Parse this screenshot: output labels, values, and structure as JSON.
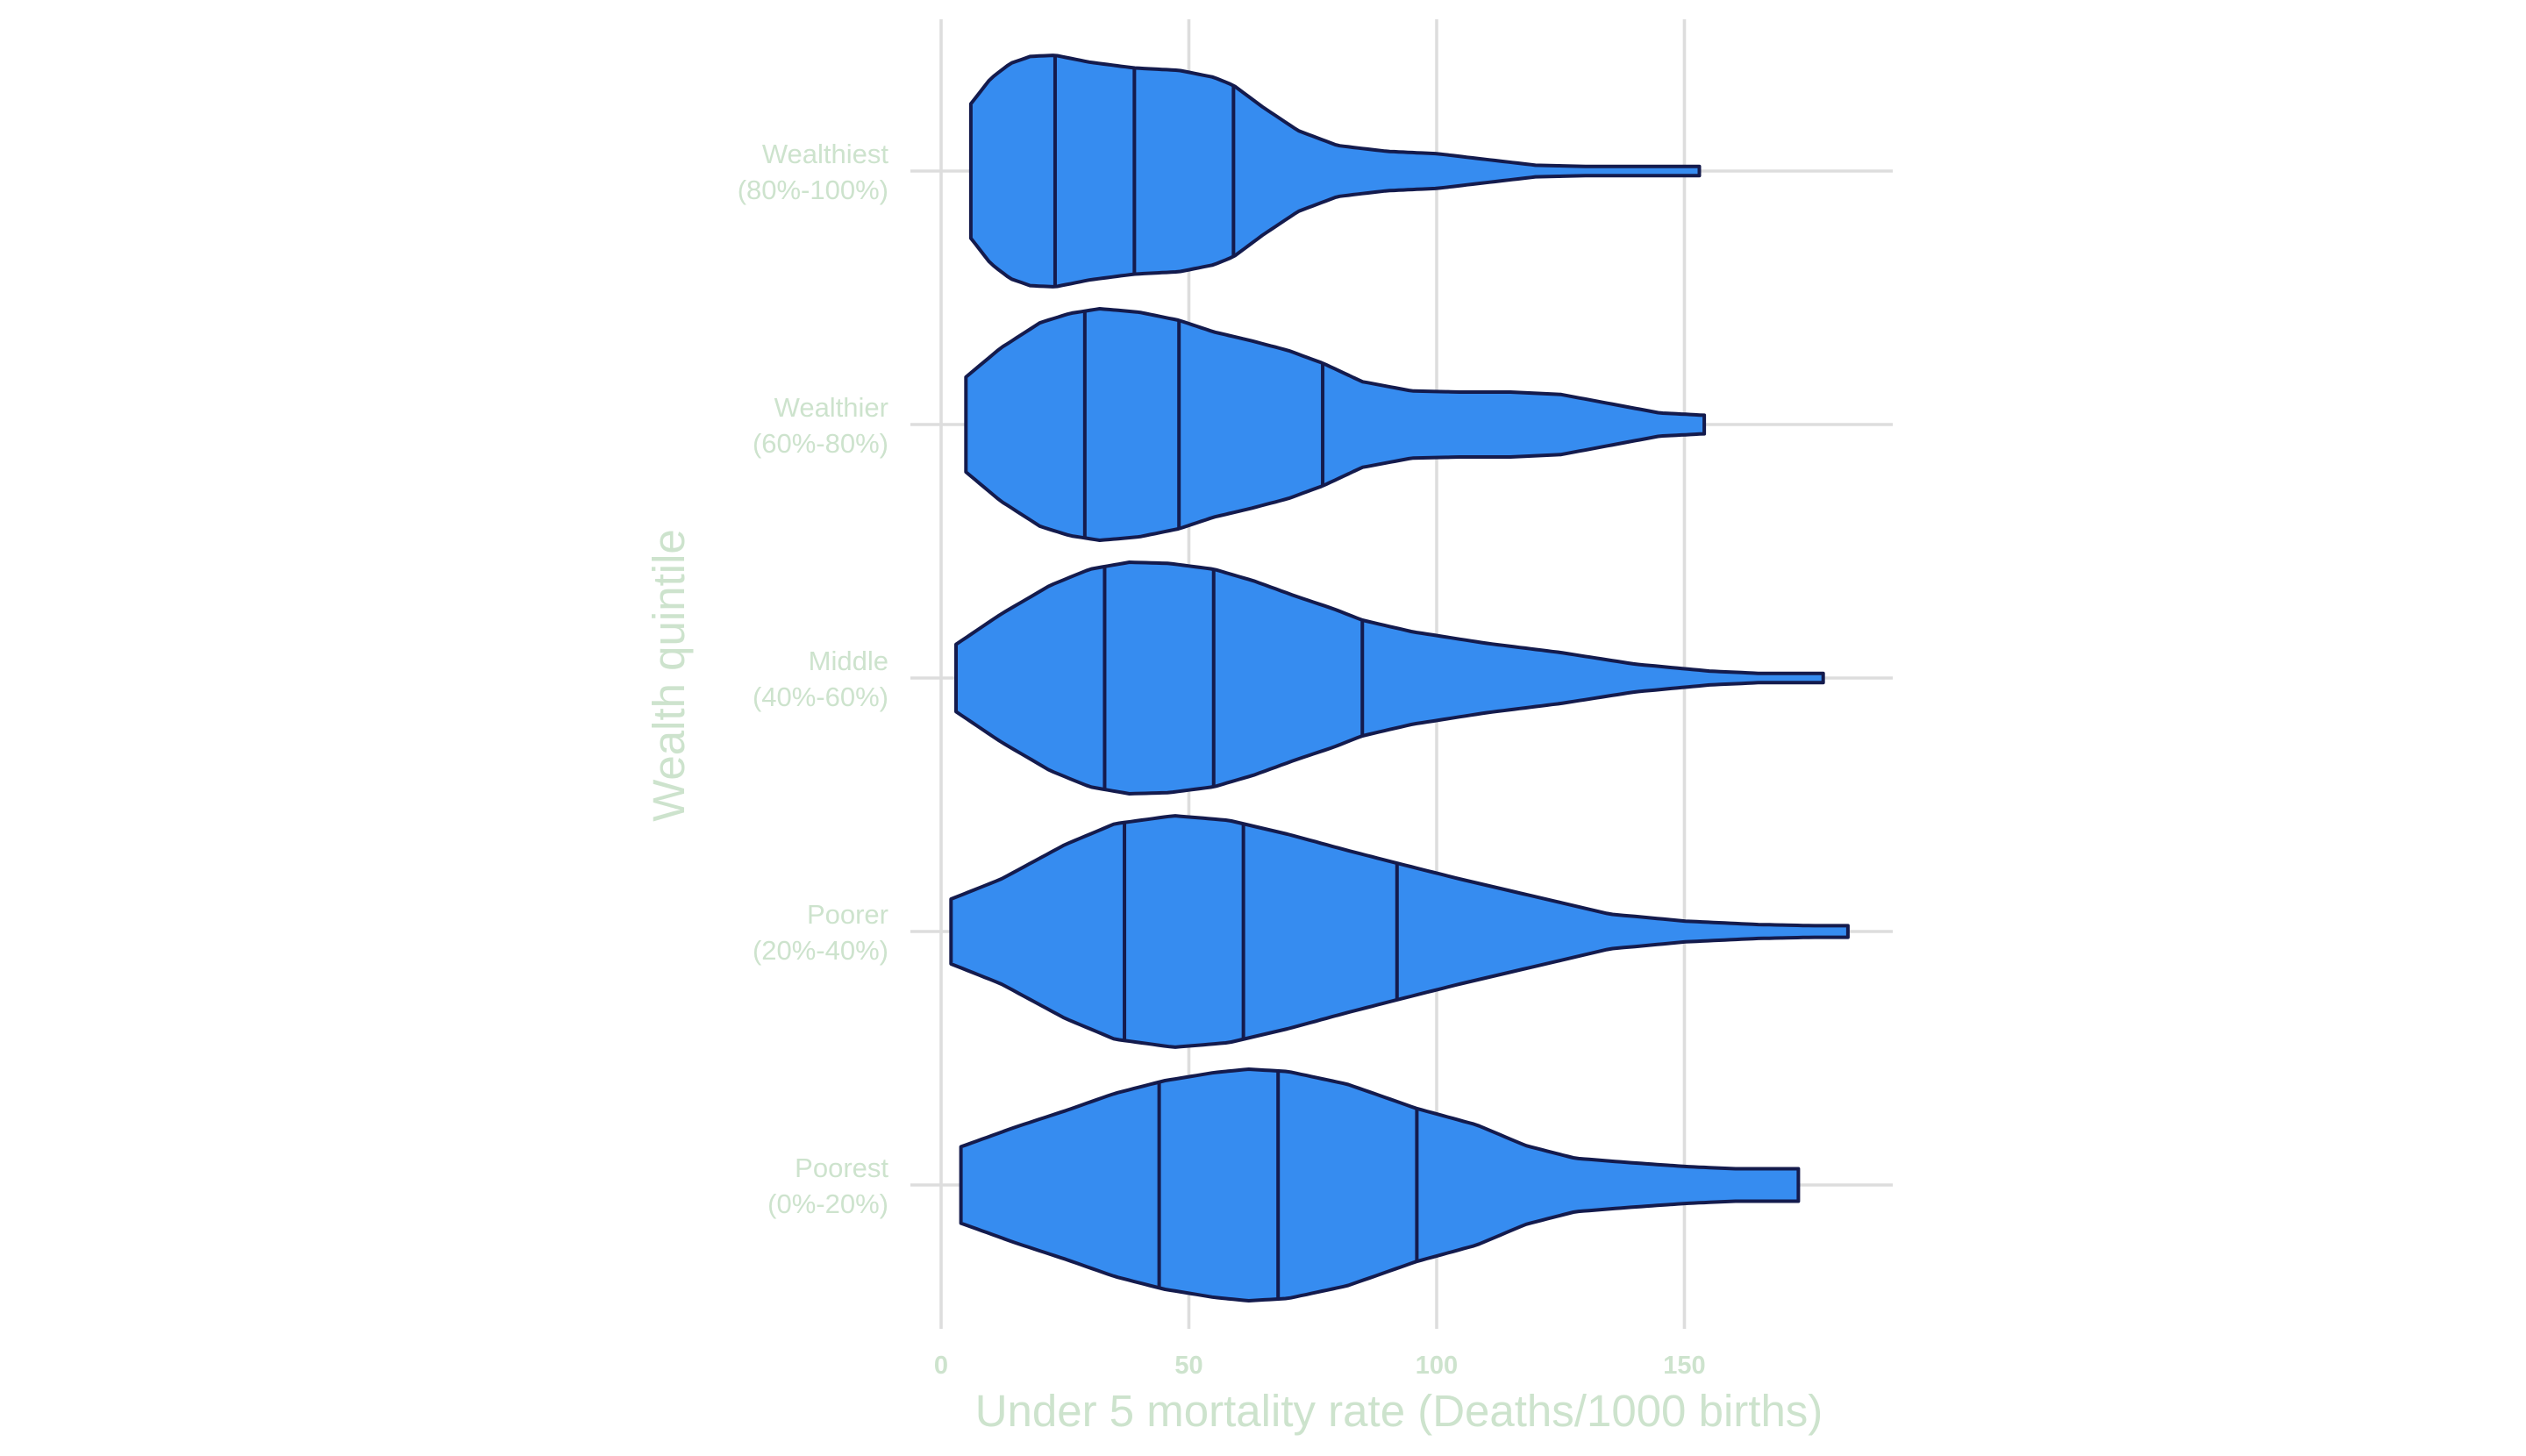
{
  "chart_data": {
    "type": "violin",
    "orientation": "horizontal",
    "xlabel": "Under 5 mortality rate (Deaths/1000 births)",
    "ylabel": "Wealth quintile",
    "xlim": [
      0,
      190
    ],
    "xticks": [
      0,
      50,
      100,
      150
    ],
    "xtick_labels": [
      "0",
      "50",
      "100",
      "150"
    ],
    "grid": true,
    "legend": "none",
    "colors": {
      "fill": "#368cf0",
      "outline": "#141b4d",
      "label": "#cde3cd",
      "grid": "#dddddd"
    },
    "categories": [
      {
        "line1": "Wealthiest",
        "line2": "(80%-100%)",
        "min": 6,
        "max": 153,
        "q1": 23,
        "median": 39,
        "q3": 59,
        "density": [
          [
            6,
            0.58
          ],
          [
            10,
            0.8
          ],
          [
            14,
            0.93
          ],
          [
            18,
            0.99
          ],
          [
            23,
            1.0
          ],
          [
            30,
            0.94
          ],
          [
            39,
            0.89
          ],
          [
            48,
            0.87
          ],
          [
            55,
            0.81
          ],
          [
            59,
            0.74
          ],
          [
            65,
            0.55
          ],
          [
            72,
            0.35
          ],
          [
            80,
            0.22
          ],
          [
            90,
            0.17
          ],
          [
            100,
            0.15
          ],
          [
            110,
            0.1
          ],
          [
            120,
            0.05
          ],
          [
            130,
            0.04
          ],
          [
            145,
            0.04
          ],
          [
            153,
            0.04
          ]
        ]
      },
      {
        "line1": "Wealthier",
        "line2": "(60%-80%)",
        "min": 5,
        "max": 154,
        "q1": 29,
        "median": 48,
        "q3": 77,
        "density": [
          [
            5,
            0.41
          ],
          [
            12,
            0.66
          ],
          [
            20,
            0.88
          ],
          [
            26,
            0.96
          ],
          [
            32,
            1.0
          ],
          [
            40,
            0.97
          ],
          [
            48,
            0.9
          ],
          [
            55,
            0.8
          ],
          [
            62,
            0.73
          ],
          [
            70,
            0.64
          ],
          [
            77,
            0.53
          ],
          [
            85,
            0.37
          ],
          [
            95,
            0.29
          ],
          [
            105,
            0.28
          ],
          [
            115,
            0.28
          ],
          [
            125,
            0.26
          ],
          [
            135,
            0.18
          ],
          [
            145,
            0.1
          ],
          [
            154,
            0.08
          ]
        ]
      },
      {
        "line1": "Middle",
        "line2": "(40%-60%)",
        "min": 3,
        "max": 178,
        "q1": 33,
        "median": 55,
        "q3": 85,
        "density": [
          [
            3,
            0.29
          ],
          [
            12,
            0.55
          ],
          [
            22,
            0.8
          ],
          [
            30,
            0.94
          ],
          [
            38,
            1.0
          ],
          [
            46,
            0.99
          ],
          [
            55,
            0.94
          ],
          [
            63,
            0.84
          ],
          [
            72,
            0.7
          ],
          [
            79,
            0.6
          ],
          [
            85,
            0.5
          ],
          [
            95,
            0.4
          ],
          [
            110,
            0.3
          ],
          [
            125,
            0.22
          ],
          [
            140,
            0.12
          ],
          [
            155,
            0.06
          ],
          [
            165,
            0.04
          ],
          [
            178,
            0.04
          ]
        ]
      },
      {
        "line1": "Poorer",
        "line2": "(20%-40%)",
        "min": 2,
        "max": 183,
        "q1": 37,
        "median": 61,
        "q3": 92,
        "density": [
          [
            2,
            0.28
          ],
          [
            12,
            0.45
          ],
          [
            25,
            0.75
          ],
          [
            35,
            0.93
          ],
          [
            47,
            1.0
          ],
          [
            58,
            0.96
          ],
          [
            70,
            0.84
          ],
          [
            82,
            0.7
          ],
          [
            92,
            0.59
          ],
          [
            105,
            0.45
          ],
          [
            120,
            0.3
          ],
          [
            135,
            0.15
          ],
          [
            150,
            0.09
          ],
          [
            165,
            0.06
          ],
          [
            176,
            0.05
          ],
          [
            183,
            0.05
          ]
        ]
      },
      {
        "line1": "Poorest",
        "line2": "(0%-20%)",
        "min": 4,
        "max": 173,
        "q1": 44,
        "median": 68,
        "q3": 96,
        "density": [
          [
            4,
            0.33
          ],
          [
            15,
            0.5
          ],
          [
            25,
            0.64
          ],
          [
            35,
            0.79
          ],
          [
            45,
            0.9
          ],
          [
            55,
            0.97
          ],
          [
            62,
            1.0
          ],
          [
            70,
            0.98
          ],
          [
            82,
            0.87
          ],
          [
            96,
            0.66
          ],
          [
            108,
            0.52
          ],
          [
            118,
            0.34
          ],
          [
            128,
            0.23
          ],
          [
            140,
            0.19
          ],
          [
            150,
            0.16
          ],
          [
            160,
            0.14
          ],
          [
            173,
            0.14
          ]
        ]
      }
    ]
  }
}
